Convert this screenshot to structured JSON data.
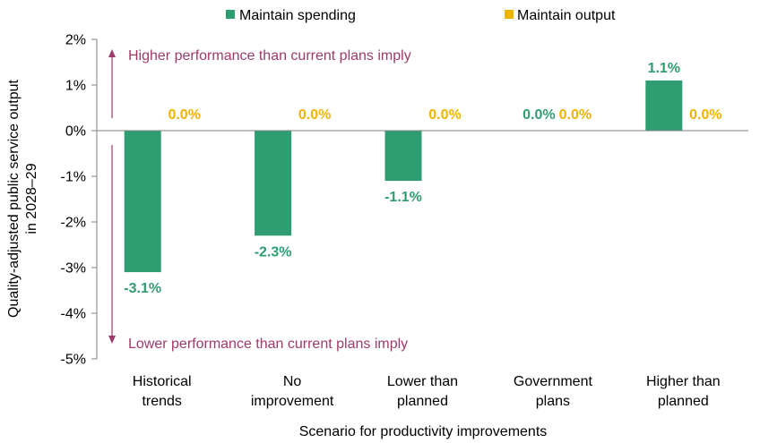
{
  "chart_data": {
    "type": "bar",
    "categories": [
      [
        "Historical",
        "trends"
      ],
      [
        "No",
        "improvement"
      ],
      [
        "Lower than",
        "planned"
      ],
      [
        "Government",
        "plans"
      ],
      [
        "Higher than",
        "planned"
      ]
    ],
    "series": [
      {
        "name": "Maintain spending",
        "color": "#2e9e72",
        "values": [
          -3.1,
          -2.3,
          -1.1,
          0.0,
          1.1
        ],
        "labels": [
          "-3.1%",
          "-2.3%",
          "-1.1%",
          "0.0%",
          "1.1%"
        ]
      },
      {
        "name": "Maintain output",
        "color": "#f0b400",
        "values": [
          0.0,
          0.0,
          0.0,
          0.0,
          0.0
        ],
        "labels": [
          "0.0%",
          "0.0%",
          "0.0%",
          "0.0%",
          "0.0%"
        ]
      }
    ],
    "xlabel": "Scenario for productivity improvements",
    "ylabel_lines": [
      "Quality-adjusted public service output",
      "in 2028–29"
    ],
    "ylim": [
      -5,
      2
    ],
    "yticks": [
      2,
      1,
      0,
      -1,
      -2,
      -3,
      -4,
      -5
    ],
    "ytick_labels": [
      "2%",
      "1%",
      "0%",
      "-1%",
      "-2%",
      "-3%",
      "-4%",
      "-5%"
    ],
    "legend_position": "top",
    "grid": false,
    "annotations": {
      "upper": "Higher performance than current plans imply",
      "lower": "Lower performance than current plans imply",
      "color": "#9e3a6b"
    }
  }
}
